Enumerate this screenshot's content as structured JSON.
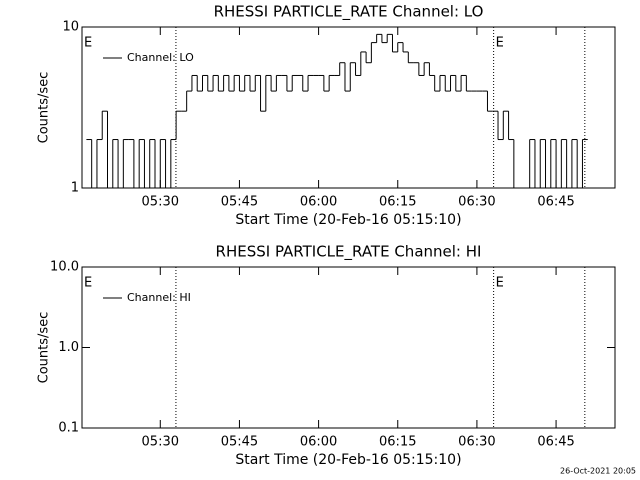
{
  "chart_data": [
    {
      "type": "line",
      "title": "RHESSI PARTICLE_RATE Channel: LO",
      "ylabel": "Counts/sec",
      "xlabel": "Start Time (20-Feb-16 05:15:10)",
      "log_y": true,
      "step": true,
      "legend": "upper left",
      "xlim": [
        "05:15:10",
        "06:56:10"
      ],
      "xticks": [
        "05:30",
        "05:45",
        "06:00",
        "06:15",
        "06:30",
        "06:45"
      ],
      "ylim": [
        1,
        10
      ],
      "yticks": [
        1,
        10
      ],
      "vlines": [
        "05:32:58",
        "06:33:10",
        "06:50:27"
      ],
      "annotations": [
        {
          "text": "E",
          "x": "05:15:10"
        },
        {
          "text": "E",
          "x": "06:33:10"
        }
      ],
      "x": [
        "05:16",
        "05:17",
        "05:18",
        "05:19",
        "05:20",
        "05:21",
        "05:22",
        "05:23",
        "05:24",
        "05:25",
        "05:26",
        "05:27",
        "05:28",
        "05:29",
        "05:30",
        "05:31",
        "05:32",
        "05:33",
        "05:34",
        "05:35",
        "05:36",
        "05:37",
        "05:38",
        "05:39",
        "05:40",
        "05:41",
        "05:42",
        "05:43",
        "05:44",
        "05:45",
        "05:46",
        "05:47",
        "05:48",
        "05:49",
        "05:50",
        "05:51",
        "05:52",
        "05:53",
        "05:54",
        "05:55",
        "05:56",
        "05:57",
        "05:58",
        "05:59",
        "06:00",
        "06:01",
        "06:02",
        "06:03",
        "06:04",
        "06:05",
        "06:06",
        "06:07",
        "06:08",
        "06:09",
        "06:10",
        "06:11",
        "06:12",
        "06:13",
        "06:14",
        "06:15",
        "06:16",
        "06:17",
        "06:18",
        "06:19",
        "06:20",
        "06:21",
        "06:22",
        "06:23",
        "06:24",
        "06:25",
        "06:26",
        "06:27",
        "06:28",
        "06:29",
        "06:30",
        "06:31",
        "06:32",
        "06:33",
        "06:34",
        "06:35",
        "06:36",
        "06:37",
        "06:38",
        "06:39",
        "06:40",
        "06:41",
        "06:42",
        "06:43",
        "06:44",
        "06:45",
        "06:46",
        "06:47",
        "06:48",
        "06:49",
        "06:50"
      ],
      "series": [
        {
          "name": "Channel: LO",
          "color": "#000000",
          "values": [
            2,
            1,
            2,
            3,
            1,
            2,
            1,
            2,
            2,
            1,
            2,
            1,
            2,
            1,
            2,
            1,
            2,
            3,
            3,
            4,
            5,
            4,
            5,
            4,
            5,
            4,
            5,
            4,
            5,
            4,
            5,
            4,
            5,
            3,
            5,
            4,
            5,
            5,
            4,
            5,
            5,
            4,
            5,
            5,
            5,
            4,
            5,
            5,
            6,
            4,
            6,
            5,
            7,
            6,
            8,
            9,
            8,
            9,
            7,
            8,
            7,
            6,
            6,
            5,
            6,
            5,
            4,
            5,
            4,
            5,
            4,
            5,
            4,
            4,
            4,
            4,
            3,
            3,
            2,
            3,
            2,
            1,
            1,
            1,
            2,
            1,
            2,
            1,
            2,
            1,
            2,
            1,
            2,
            1,
            2
          ]
        }
      ]
    },
    {
      "type": "line",
      "title": "RHESSI PARTICLE_RATE Channel: HI",
      "ylabel": "Counts/sec",
      "xlabel": "Start Time (20-Feb-16 05:15:10)",
      "log_y": true,
      "step": true,
      "legend": "upper left",
      "xlim": [
        "05:15:10",
        "06:56:10"
      ],
      "xticks": [
        "05:30",
        "05:45",
        "06:00",
        "06:15",
        "06:30",
        "06:45"
      ],
      "ylim": [
        0.1,
        10
      ],
      "yticks": [
        0.1,
        {
          "value": 1,
          "label": "1.0"
        },
        {
          "value": 10,
          "label": "10.0"
        }
      ],
      "vlines": [
        "05:32:58",
        "06:33:10",
        "06:50:27"
      ],
      "annotations": [
        {
          "text": "E",
          "x": "05:15:10"
        },
        {
          "text": "E",
          "x": "06:33:10"
        }
      ],
      "x": [],
      "series": [
        {
          "name": "Channel: HI",
          "color": "#000000",
          "values": []
        }
      ]
    }
  ],
  "footer": "26-Oct-2021 20:05"
}
